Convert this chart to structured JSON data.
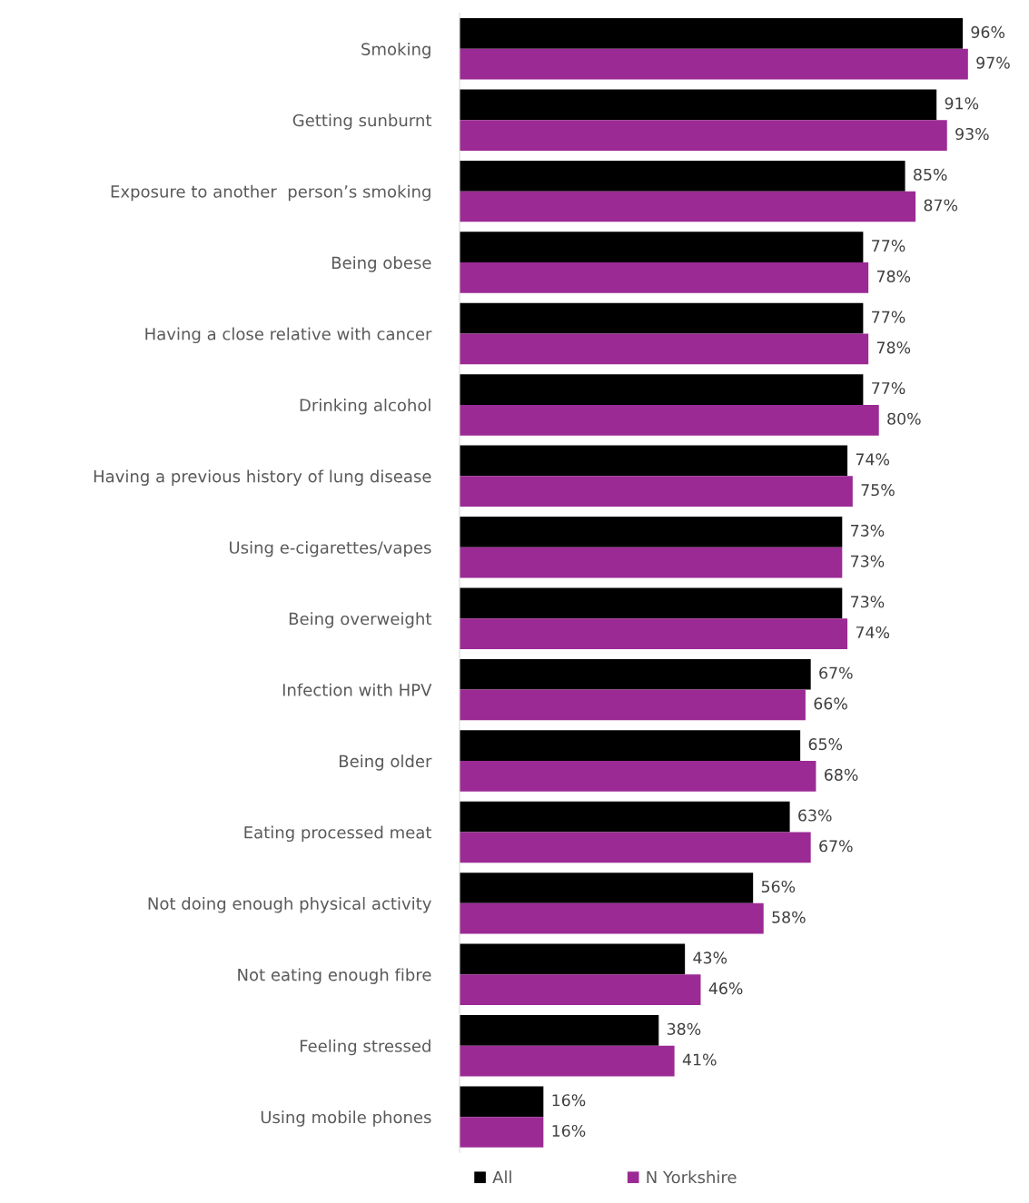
{
  "chart_data": {
    "type": "bar",
    "orientation": "horizontal",
    "legend": "bottom",
    "grid": false,
    "tick_labels": "y",
    "categories": [
      "Smoking",
      "Getting sunburnt",
      "Exposure to another  person’s smoking",
      "Being obese",
      "Having a close relative with cancer",
      "Drinking alcohol",
      "Having a previous history of lung disease",
      "Using e-cigarettes/vapes",
      "Being overweight",
      "Infection with HPV",
      "Being older",
      "Eating processed meat",
      "Not doing enough physical activity",
      "Not eating enough fibre",
      "Feeling stressed",
      "Using mobile phones"
    ],
    "series": [
      {
        "name": "All",
        "color": "#000000",
        "values": [
          96,
          91,
          85,
          77,
          77,
          77,
          74,
          73,
          73,
          67,
          65,
          63,
          56,
          43,
          38,
          16
        ],
        "value_labels": [
          "96%",
          "91%",
          "85%",
          "77%",
          "77%",
          "77%",
          "74%",
          "73%",
          "73%",
          "67%",
          "65%",
          "63%",
          "56%",
          "43%",
          "38%",
          "16%"
        ]
      },
      {
        "name": "N Yorkshire",
        "color": "#9b2a94",
        "values": [
          97,
          93,
          87,
          78,
          78,
          80,
          75,
          73,
          74,
          66,
          68,
          67,
          58,
          46,
          41,
          16
        ],
        "value_labels": [
          "97%",
          "93%",
          "87%",
          "78%",
          "78%",
          "80%",
          "75%",
          "73%",
          "74%",
          "66%",
          "68%",
          "67%",
          "58%",
          "46%",
          "41%",
          "16%"
        ]
      }
    ]
  }
}
